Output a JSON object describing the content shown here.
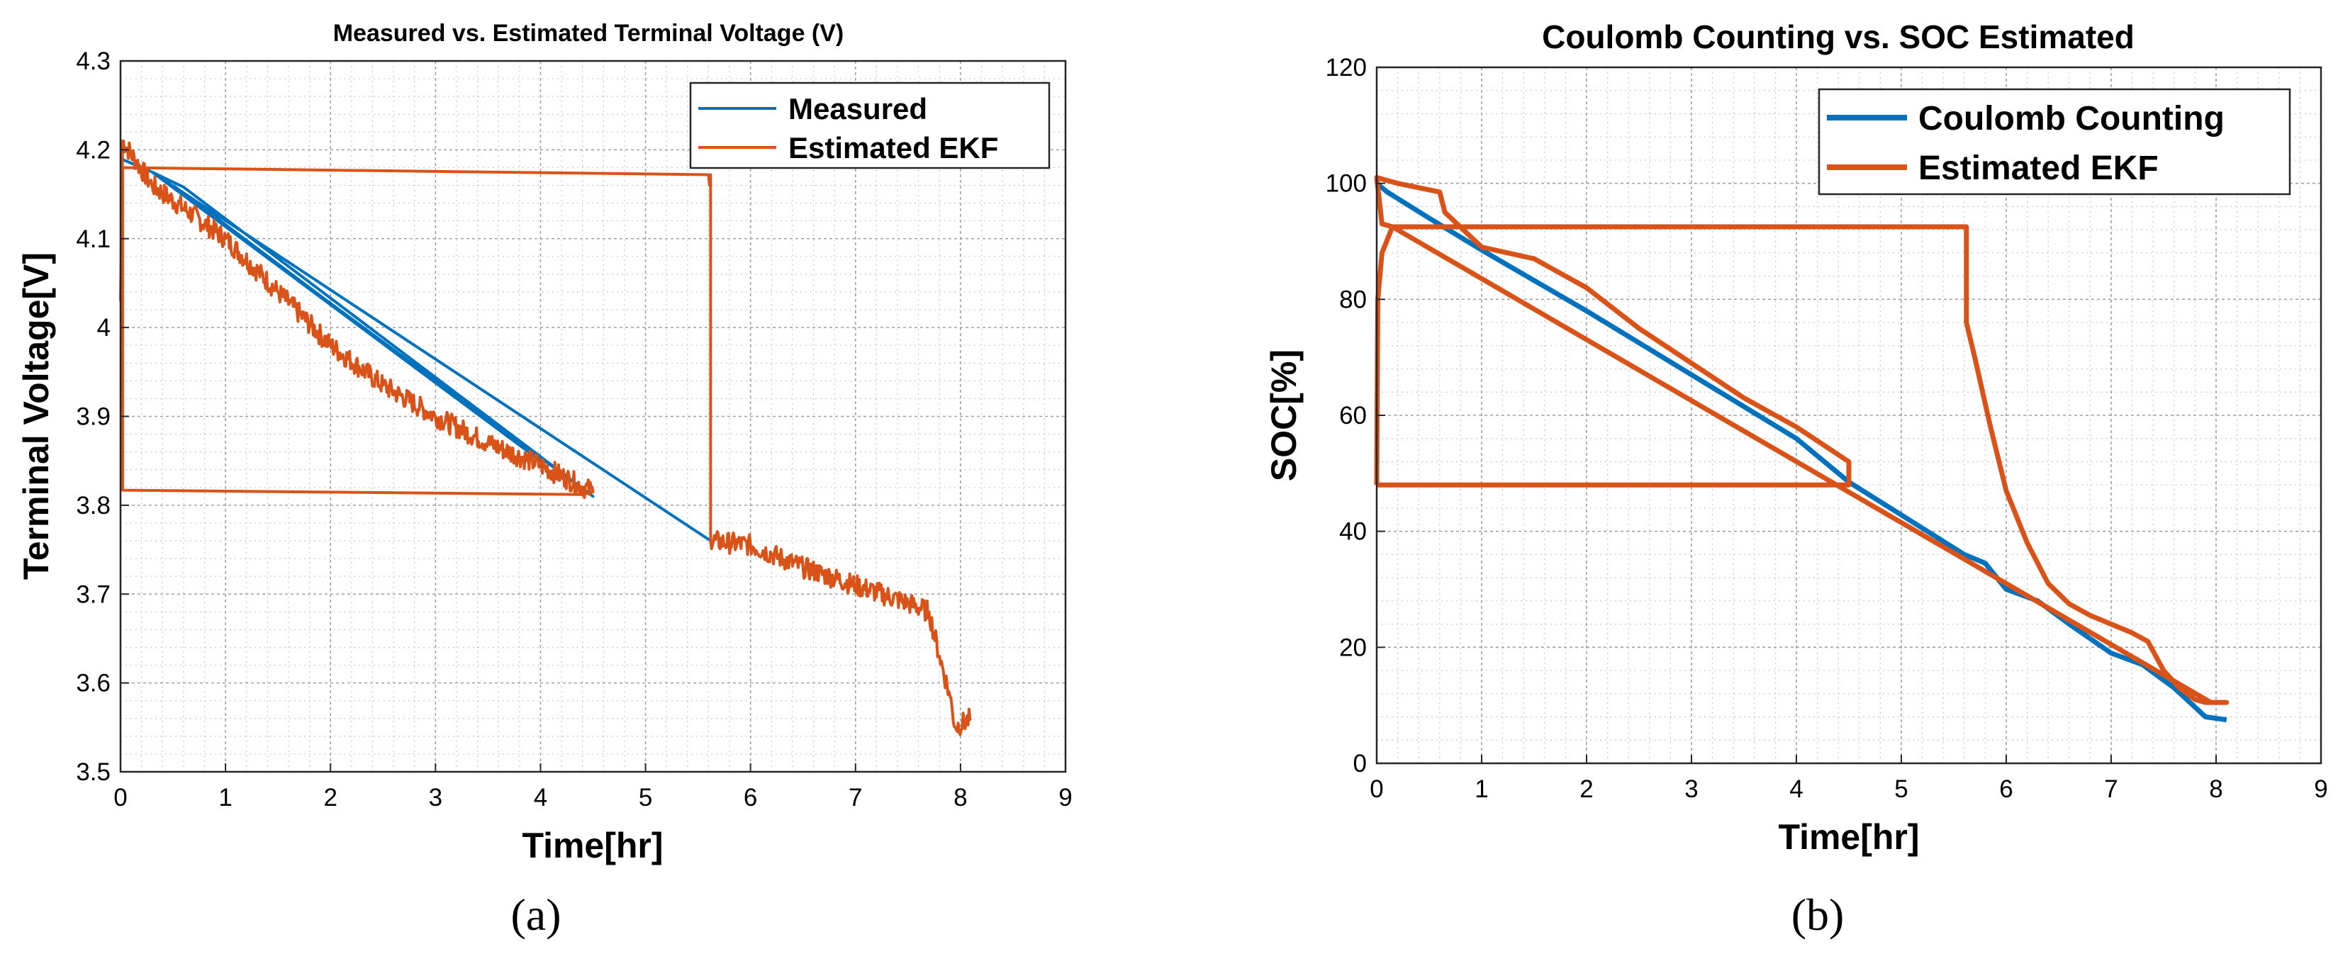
{
  "chart_data": [
    {
      "type": "line",
      "panel_label": "(a)",
      "title": "Measured vs. Estimated Terminal Voltage (V)",
      "xlabel": "Time[hr]",
      "ylabel": "Terminal Voltage[V]",
      "xlim": [
        0,
        9
      ],
      "ylim": [
        3.5,
        4.3
      ],
      "xticks": [
        "0",
        "1",
        "2",
        "3",
        "4",
        "5",
        "6",
        "7",
        "8",
        "9"
      ],
      "yticks": [
        "3.5",
        "3.6",
        "3.7",
        "3.8",
        "3.9",
        "4",
        "4.1",
        "4.2",
        "4.3"
      ],
      "grid": true,
      "legend_position": "top-right",
      "series": [
        {
          "name": "Measured",
          "color": "#0072BD",
          "points": [
            [
              0,
              4.19
            ],
            [
              0.3,
              4.175
            ],
            [
              0.6,
              4.158
            ],
            [
              4.5,
              3.81
            ],
            [
              0.3,
              4.175
            ],
            [
              5.62,
              3.76
            ],
            [
              0.3,
              4.175
            ],
            [
              4.0,
              3.85
            ],
            [
              0.5,
              4.16
            ]
          ]
        },
        {
          "name": "Estimated EKF",
          "color": "#D95319",
          "noise": 0.012,
          "points": [
            [
              0,
              4.03
            ],
            [
              0.02,
              4.21
            ],
            [
              0.3,
              4.16
            ],
            [
              1,
              4.1
            ],
            [
              1.5,
              4.04
            ],
            [
              2,
              3.98
            ],
            [
              2.5,
              3.935
            ],
            [
              3,
              3.9
            ],
            [
              3.5,
              3.87
            ],
            [
              4,
              3.845
            ],
            [
              4.5,
              3.815
            ],
            [
              4.4,
              3.812
            ],
            [
              0.02,
              3.817
            ],
            [
              0.02,
              4.18
            ],
            [
              5.6,
              4.172
            ],
            [
              5.62,
              4.172
            ],
            [
              5.62,
              3.76
            ],
            [
              6,
              3.755
            ],
            [
              6.5,
              3.73
            ],
            [
              7,
              3.71
            ],
            [
              7.5,
              3.69
            ],
            [
              7.7,
              3.68
            ],
            [
              7.8,
              3.63
            ],
            [
              7.9,
              3.585
            ],
            [
              7.95,
              3.55
            ],
            [
              8.1,
              3.56
            ]
          ]
        }
      ]
    },
    {
      "type": "line",
      "panel_label": "(b)",
      "title": "Coulomb Counting vs. SOC Estimated",
      "xlabel": "Time[hr]",
      "ylabel": "SOC[%]",
      "xlim": [
        0,
        9
      ],
      "ylim": [
        0,
        120
      ],
      "xticks": [
        "0",
        "1",
        "2",
        "3",
        "4",
        "5",
        "6",
        "7",
        "8",
        "9"
      ],
      "yticks": [
        "0",
        "20",
        "40",
        "60",
        "80",
        "100",
        "120"
      ],
      "grid": true,
      "legend_position": "top-right",
      "series": [
        {
          "name": "Coulomb Counting",
          "color": "#0072BD",
          "points": [
            [
              0,
              100
            ],
            [
              0.1,
              98.5
            ],
            [
              0.5,
              94
            ],
            [
              1,
              88.5
            ],
            [
              2,
              78
            ],
            [
              3,
              67
            ],
            [
              4,
              56
            ],
            [
              4.5,
              48.5
            ],
            [
              5.6,
              36
            ],
            [
              5.8,
              34.5
            ],
            [
              6,
              30
            ],
            [
              6.3,
              28
            ],
            [
              6.6,
              24
            ],
            [
              7,
              19
            ],
            [
              7.3,
              17
            ],
            [
              7.6,
              13
            ],
            [
              7.9,
              8
            ],
            [
              8.1,
              7.5
            ]
          ]
        },
        {
          "name": "Estimated EKF",
          "color": "#D95319",
          "points": [
            [
              0,
              48
            ],
            [
              0.01,
              80
            ],
            [
              0.05,
              88
            ],
            [
              0.15,
              92.5
            ],
            [
              5.62,
              92.5
            ],
            [
              5.62,
              76
            ],
            [
              5.7,
              70
            ],
            [
              5.85,
              58
            ],
            [
              6,
              47
            ],
            [
              6.2,
              38
            ],
            [
              6.4,
              31
            ],
            [
              6.6,
              27.5
            ],
            [
              6.8,
              25.5
            ],
            [
              7.0,
              24
            ],
            [
              7.2,
              22.5
            ],
            [
              7.35,
              21
            ],
            [
              7.5,
              16
            ],
            [
              7.65,
              13
            ],
            [
              7.8,
              11
            ],
            [
              7.9,
              10.5
            ],
            [
              8.1,
              10.5
            ],
            [
              7.95,
              10.5
            ],
            [
              0.15,
              92.5
            ],
            [
              0.05,
              93
            ],
            [
              0,
              101
            ],
            [
              0.2,
              100
            ],
            [
              0.6,
              98.5
            ],
            [
              0.65,
              95
            ],
            [
              1,
              89
            ],
            [
              1.5,
              87
            ],
            [
              2,
              82
            ],
            [
              2.5,
              75
            ],
            [
              3,
              69
            ],
            [
              3.5,
              63
            ],
            [
              4,
              58
            ],
            [
              4.5,
              52
            ],
            [
              4.5,
              48
            ],
            [
              0,
              48
            ]
          ]
        }
      ]
    }
  ]
}
